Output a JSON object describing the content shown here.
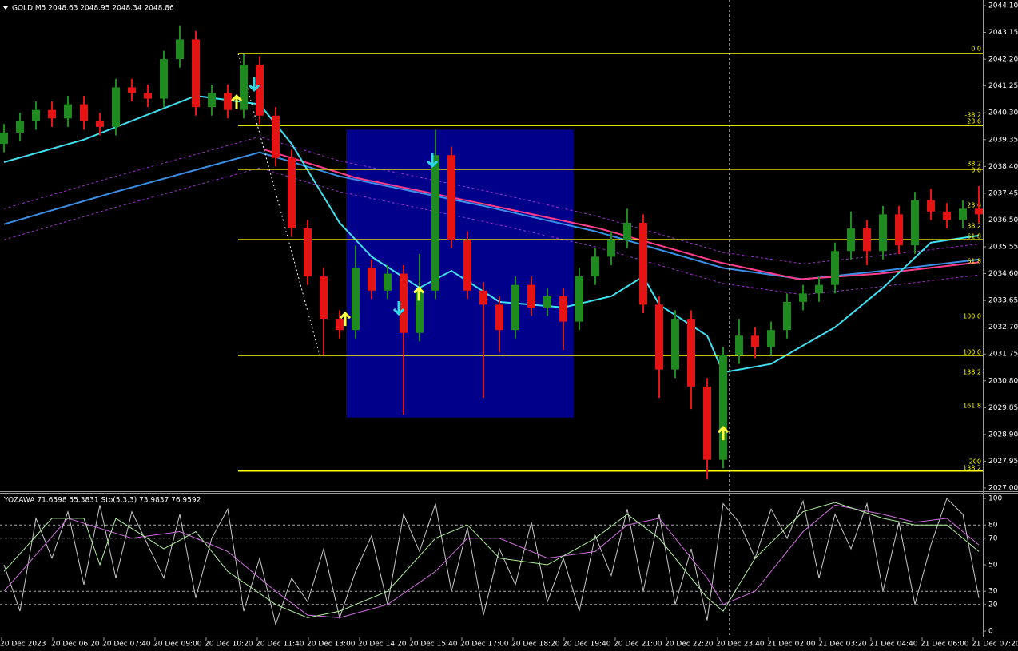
{
  "chart_data": [
    {
      "type": "candlestick",
      "title": "GOLD,M5  2048.63 2048.95 2048.34 2048.86",
      "xlim": [
        -0.25,
        61.25
      ],
      "ylim": [
        2027.0,
        2044.1
      ],
      "yticks": [
        {
          "value": 2044.1,
          "label": "2044.10"
        },
        {
          "value": 2043.15,
          "label": "2043.15"
        },
        {
          "value": 2042.2,
          "label": "2042.20"
        },
        {
          "value": 2041.25,
          "label": "2041.25"
        },
        {
          "value": 2040.3,
          "label": "2040.30"
        },
        {
          "value": 2039.35,
          "label": "2039.35"
        },
        {
          "value": 2038.4,
          "label": "2038.40"
        },
        {
          "value": 2037.45,
          "label": "2037.45"
        },
        {
          "value": 2036.5,
          "label": "2036.50"
        },
        {
          "value": 2035.55,
          "label": "2035.55"
        },
        {
          "value": 2034.6,
          "label": "2034.60"
        },
        {
          "value": 2033.65,
          "label": "2033.65"
        },
        {
          "value": 2032.7,
          "label": "2032.70"
        },
        {
          "value": 2031.75,
          "label": "2031.75"
        },
        {
          "value": 2030.8,
          "label": "2030.80"
        },
        {
          "value": 2029.85,
          "label": "2029.85"
        },
        {
          "value": 2028.9,
          "label": "2028.90"
        },
        {
          "value": 2027.95,
          "label": "2027.95"
        },
        {
          "value": 2027.0,
          "label": "2027.00"
        }
      ],
      "up_color": "#1f8a1f",
      "down_color": "#e41414",
      "open": [
        2039.2,
        2039.6,
        2040.0,
        2040.4,
        2040.1,
        2040.6,
        2040.0,
        2039.8,
        2041.2,
        2041.0,
        2040.8,
        2042.2,
        2042.9,
        2040.5,
        2041.0,
        2040.4,
        2042.0,
        2040.2,
        2038.7,
        2036.2,
        2034.5,
        2033.0,
        2032.6,
        2034.8,
        2034.0,
        2034.6,
        2032.5,
        2034.0,
        2038.8,
        2035.8,
        2034.0,
        2033.5,
        2032.6,
        2034.2,
        2033.4,
        2033.8,
        2032.9,
        2034.5,
        2035.2,
        2035.8,
        2036.4,
        2033.5,
        2031.2,
        2033.0,
        2030.6,
        2028.0,
        2031.7,
        2032.4,
        2032.0,
        2032.6,
        2033.6,
        2033.9,
        2034.2,
        2035.4,
        2036.2,
        2035.4,
        2036.7,
        2035.6,
        2037.2,
        2036.8,
        2036.5,
        2036.9
      ],
      "high": [
        2039.9,
        2040.3,
        2040.7,
        2040.7,
        2040.9,
        2040.9,
        2040.3,
        2041.5,
        2041.5,
        2041.3,
        2042.5,
        2043.4,
        2043.2,
        2041.3,
        2041.3,
        2042.4,
        2042.3,
        2040.5,
        2039.0,
        2036.5,
        2034.8,
        2033.3,
        2035.6,
        2035.1,
        2034.9,
        2034.9,
        2035.3,
        2039.7,
        2039.1,
        2036.1,
        2034.3,
        2033.8,
        2034.5,
        2034.5,
        2034.1,
        2034.1,
        2034.8,
        2035.5,
        2036.1,
        2036.9,
        2036.7,
        2033.8,
        2033.3,
        2033.3,
        2030.9,
        2032.0,
        2033.0,
        2032.7,
        2032.9,
        2033.9,
        2034.2,
        2034.5,
        2035.7,
        2036.8,
        2036.5,
        2037.0,
        2037.0,
        2037.5,
        2037.6,
        2037.1,
        2037.2,
        2037.7
      ],
      "low": [
        2038.9,
        2039.3,
        2039.7,
        2039.8,
        2039.8,
        2039.7,
        2039.5,
        2039.5,
        2040.7,
        2040.5,
        2040.5,
        2041.9,
        2040.2,
        2040.2,
        2040.1,
        2040.1,
        2039.9,
        2038.4,
        2035.9,
        2034.2,
        2031.7,
        2032.3,
        2032.3,
        2033.7,
        2033.7,
        2029.6,
        2032.2,
        2033.7,
        2035.5,
        2033.7,
        2030.2,
        2031.8,
        2032.3,
        2033.1,
        2033.1,
        2031.9,
        2032.6,
        2034.2,
        2034.9,
        2035.5,
        2033.2,
        2030.2,
        2030.9,
        2029.8,
        2027.3,
        2027.7,
        2031.4,
        2031.6,
        2031.7,
        2032.3,
        2033.3,
        2033.6,
        2033.9,
        2035.1,
        2034.9,
        2035.1,
        2035.3,
        2035.3,
        2036.5,
        2036.2,
        2036.2,
        2036.4
      ],
      "close": [
        2039.6,
        2040.0,
        2040.4,
        2040.1,
        2040.6,
        2040.0,
        2039.8,
        2041.2,
        2041.0,
        2040.8,
        2042.2,
        2042.9,
        2040.5,
        2041.0,
        2040.4,
        2042.0,
        2040.2,
        2038.7,
        2036.2,
        2034.5,
        2033.0,
        2032.6,
        2034.8,
        2034.0,
        2034.6,
        2032.5,
        2034.0,
        2038.8,
        2035.8,
        2034.0,
        2033.5,
        2032.6,
        2034.2,
        2033.4,
        2033.8,
        2032.9,
        2034.5,
        2035.2,
        2035.8,
        2036.4,
        2033.5,
        2031.2,
        2033.0,
        2030.6,
        2028.0,
        2031.7,
        2032.4,
        2032.0,
        2032.6,
        2033.6,
        2033.9,
        2034.2,
        2035.4,
        2036.2,
        2035.4,
        2036.7,
        2035.6,
        2037.2,
        2036.8,
        2036.5,
        2036.9,
        2036.7
      ],
      "overlays": [
        {
          "color": "#a030d0",
          "dash": true,
          "x": [
            0,
            7,
            16,
            21,
            30,
            37,
            45,
            50,
            55,
            61
          ],
          "values": [
            2036.9,
            2038.05,
            2039.45,
            2038.6,
            2037.55,
            2036.65,
            2035.35,
            2034.95,
            2035.25,
            2035.65
          ]
        },
        {
          "color": "#a030d0",
          "dash": true,
          "x": [
            0,
            7,
            16,
            21,
            30,
            37,
            45,
            50,
            55,
            61
          ],
          "values": [
            2035.8,
            2036.95,
            2038.35,
            2037.5,
            2036.45,
            2035.55,
            2034.25,
            2033.85,
            2034.15,
            2034.55
          ]
        },
        {
          "color": "#3a8ee6",
          "x": [
            0,
            7,
            16,
            21,
            30,
            37,
            45,
            50,
            55,
            61
          ],
          "values": [
            2036.35,
            2037.5,
            2038.9,
            2038.05,
            2037.0,
            2036.1,
            2034.8,
            2034.4,
            2034.7,
            2035.1
          ]
        },
        {
          "color": "#ff3c8c",
          "x": [
            16.25,
            22,
            29.75,
            37.25,
            44.75,
            49.75,
            54.75,
            61
          ],
          "values": [
            2039.0,
            2038.0,
            2037.1,
            2036.2,
            2035.0,
            2034.4,
            2034.6,
            2035.0
          ]
        },
        {
          "color": "#40e0f0",
          "x": [
            0,
            5,
            12,
            16,
            18,
            21,
            23,
            26,
            28,
            31,
            35,
            38,
            40,
            41,
            44,
            45,
            48,
            52,
            55,
            58,
            61
          ],
          "values": [
            2038.55,
            2039.35,
            2040.9,
            2040.6,
            2039.2,
            2036.4,
            2035.2,
            2034.1,
            2034.7,
            2033.6,
            2033.4,
            2033.8,
            2034.5,
            2033.5,
            2032.4,
            2031.1,
            2031.4,
            2032.7,
            2034.1,
            2035.7,
            2035.95
          ]
        }
      ],
      "rectangle": {
        "color": "#00008b",
        "x": [
          21.4,
          35.6
        ],
        "y": [
          2029.5,
          2039.7
        ]
      },
      "trendline": {
        "x": [
          14.65,
          19.75
        ],
        "y": [
          2042.4,
          2031.7
        ]
      },
      "crosshair_x": 45.4,
      "fib_color": "#ffff00",
      "fib_start": 14.65,
      "fib_lines": [
        2042.4,
        2039.85,
        2038.3,
        2035.8,
        2031.7,
        2027.6
      ],
      "fib_labels": [
        {
          "value": 2042.57,
          "label": "0.0"
        },
        {
          "value": 2040.22,
          "label": "-38.2"
        },
        {
          "value": 2039.99,
          "label": "23.6"
        },
        {
          "value": 2038.49,
          "label": "38.2"
        },
        {
          "value": 2038.27,
          "label": "0.0"
        },
        {
          "value": 2037.02,
          "label": "23.6"
        },
        {
          "value": 2036.28,
          "label": "38.2"
        },
        {
          "value": 2035.92,
          "label": "61.8"
        },
        {
          "value": 2035.04,
          "label": "61.8"
        },
        {
          "value": 2033.09,
          "label": "100.0"
        },
        {
          "value": 2031.81,
          "label": "100.0"
        },
        {
          "value": 2031.1,
          "label": "138.2"
        },
        {
          "value": 2029.92,
          "label": "161.8"
        },
        {
          "value": 2027.94,
          "label": "200"
        },
        {
          "value": 2027.71,
          "label": "138.2"
        }
      ],
      "signals": [
        {
          "dir": "up",
          "color": "#ffff40",
          "x": 14.55,
          "value": 2040.67
        },
        {
          "dir": "up",
          "color": "#ffff40",
          "x": 21.35,
          "value": 2032.97
        },
        {
          "dir": "up",
          "color": "#ffff40",
          "x": 25.95,
          "value": 2033.87
        },
        {
          "dir": "up",
          "color": "#ffff40",
          "x": 45.0,
          "value": 2028.92
        },
        {
          "dir": "down",
          "color": "#30d8e8",
          "x": 15.65,
          "value": 2041.33
        },
        {
          "dir": "down",
          "color": "#30d8e8",
          "x": 24.7,
          "value": 2033.4
        },
        {
          "dir": "down",
          "color": "#30d8e8",
          "x": 26.8,
          "value": 2038.64
        }
      ]
    },
    {
      "type": "line",
      "title": "YOZAWA 71.6598 55.3831  Sto(5,3,3) 73.9837 76.9592",
      "xlim": [
        -0.25,
        61.25
      ],
      "ylim": [
        0,
        100
      ],
      "yticks": [
        0,
        20,
        30,
        50,
        70,
        80,
        100
      ],
      "levels": [
        20,
        30,
        70,
        80
      ],
      "x_labels": [
        "20 Dec 2023",
        "20 Dec 06:20",
        "20 Dec 07:40",
        "20 Dec 09:00",
        "20 Dec 10:20",
        "20 Dec 11:40",
        "20 Dec 13:00",
        "20 Dec 14:20",
        "20 Dec 15:40",
        "20 Dec 17:00",
        "20 Dec 18:20",
        "20 Dec 19:40",
        "20 Dec 21:00",
        "20 Dec 22:20",
        "20 Dec 23:40",
        "21 Dec 02:00",
        "21 Dec 03:20",
        "21 Dec 04:40",
        "21 Dec 06:00",
        "21 Dec 07:20"
      ],
      "series": [
        {
          "color": "#c8c8c8",
          "x": [
            0,
            1,
            2,
            3,
            4,
            5,
            6,
            7,
            8,
            9,
            10,
            11,
            12,
            13,
            14,
            15,
            16,
            17,
            18,
            19,
            20,
            21,
            22,
            23,
            24,
            25,
            26,
            27,
            28,
            29,
            30,
            31,
            32,
            33,
            34,
            35,
            36,
            37,
            38,
            39,
            40,
            41,
            42,
            43,
            44,
            45,
            46,
            47,
            48,
            49,
            50,
            51,
            52,
            53,
            54,
            55,
            56,
            57,
            58,
            59,
            60,
            61
          ],
          "values": [
            50,
            15,
            85,
            55,
            90,
            35,
            95,
            40,
            90,
            65,
            40,
            88,
            25,
            70,
            92,
            15,
            55,
            5,
            40,
            22,
            62,
            10,
            45,
            72,
            20,
            88,
            60,
            96,
            30,
            78,
            12,
            62,
            35,
            82,
            22,
            55,
            15,
            72,
            42,
            92,
            30,
            88,
            20,
            62,
            8,
            96,
            82,
            55,
            92,
            70,
            98,
            40,
            88,
            62,
            96,
            30,
            82,
            20,
            65,
            100,
            88,
            25
          ]
        },
        {
          "color": "#d070e0",
          "x": [
            0,
            4,
            8,
            11,
            14,
            17,
            19,
            21,
            24,
            27,
            29,
            31,
            34,
            37,
            39,
            41,
            44,
            45,
            47,
            50,
            52,
            55,
            57,
            59,
            61
          ],
          "values": [
            30,
            85,
            70,
            75,
            60,
            30,
            12,
            10,
            20,
            45,
            70,
            70,
            55,
            60,
            80,
            85,
            40,
            20,
            30,
            75,
            95,
            88,
            82,
            85,
            65
          ]
        },
        {
          "color": "#b0f0a0",
          "x": [
            0,
            3,
            5,
            6,
            7,
            10,
            12,
            14,
            17,
            19,
            21,
            24,
            27,
            29,
            31,
            34,
            37,
            39,
            41,
            44,
            45,
            47,
            50,
            52,
            55,
            57,
            59,
            61
          ],
          "values": [
            45,
            85,
            85,
            50,
            85,
            62,
            75,
            45,
            20,
            10,
            15,
            30,
            70,
            80,
            55,
            50,
            70,
            88,
            70,
            25,
            15,
            55,
            90,
            97,
            85,
            80,
            80,
            60
          ]
        }
      ]
    }
  ]
}
